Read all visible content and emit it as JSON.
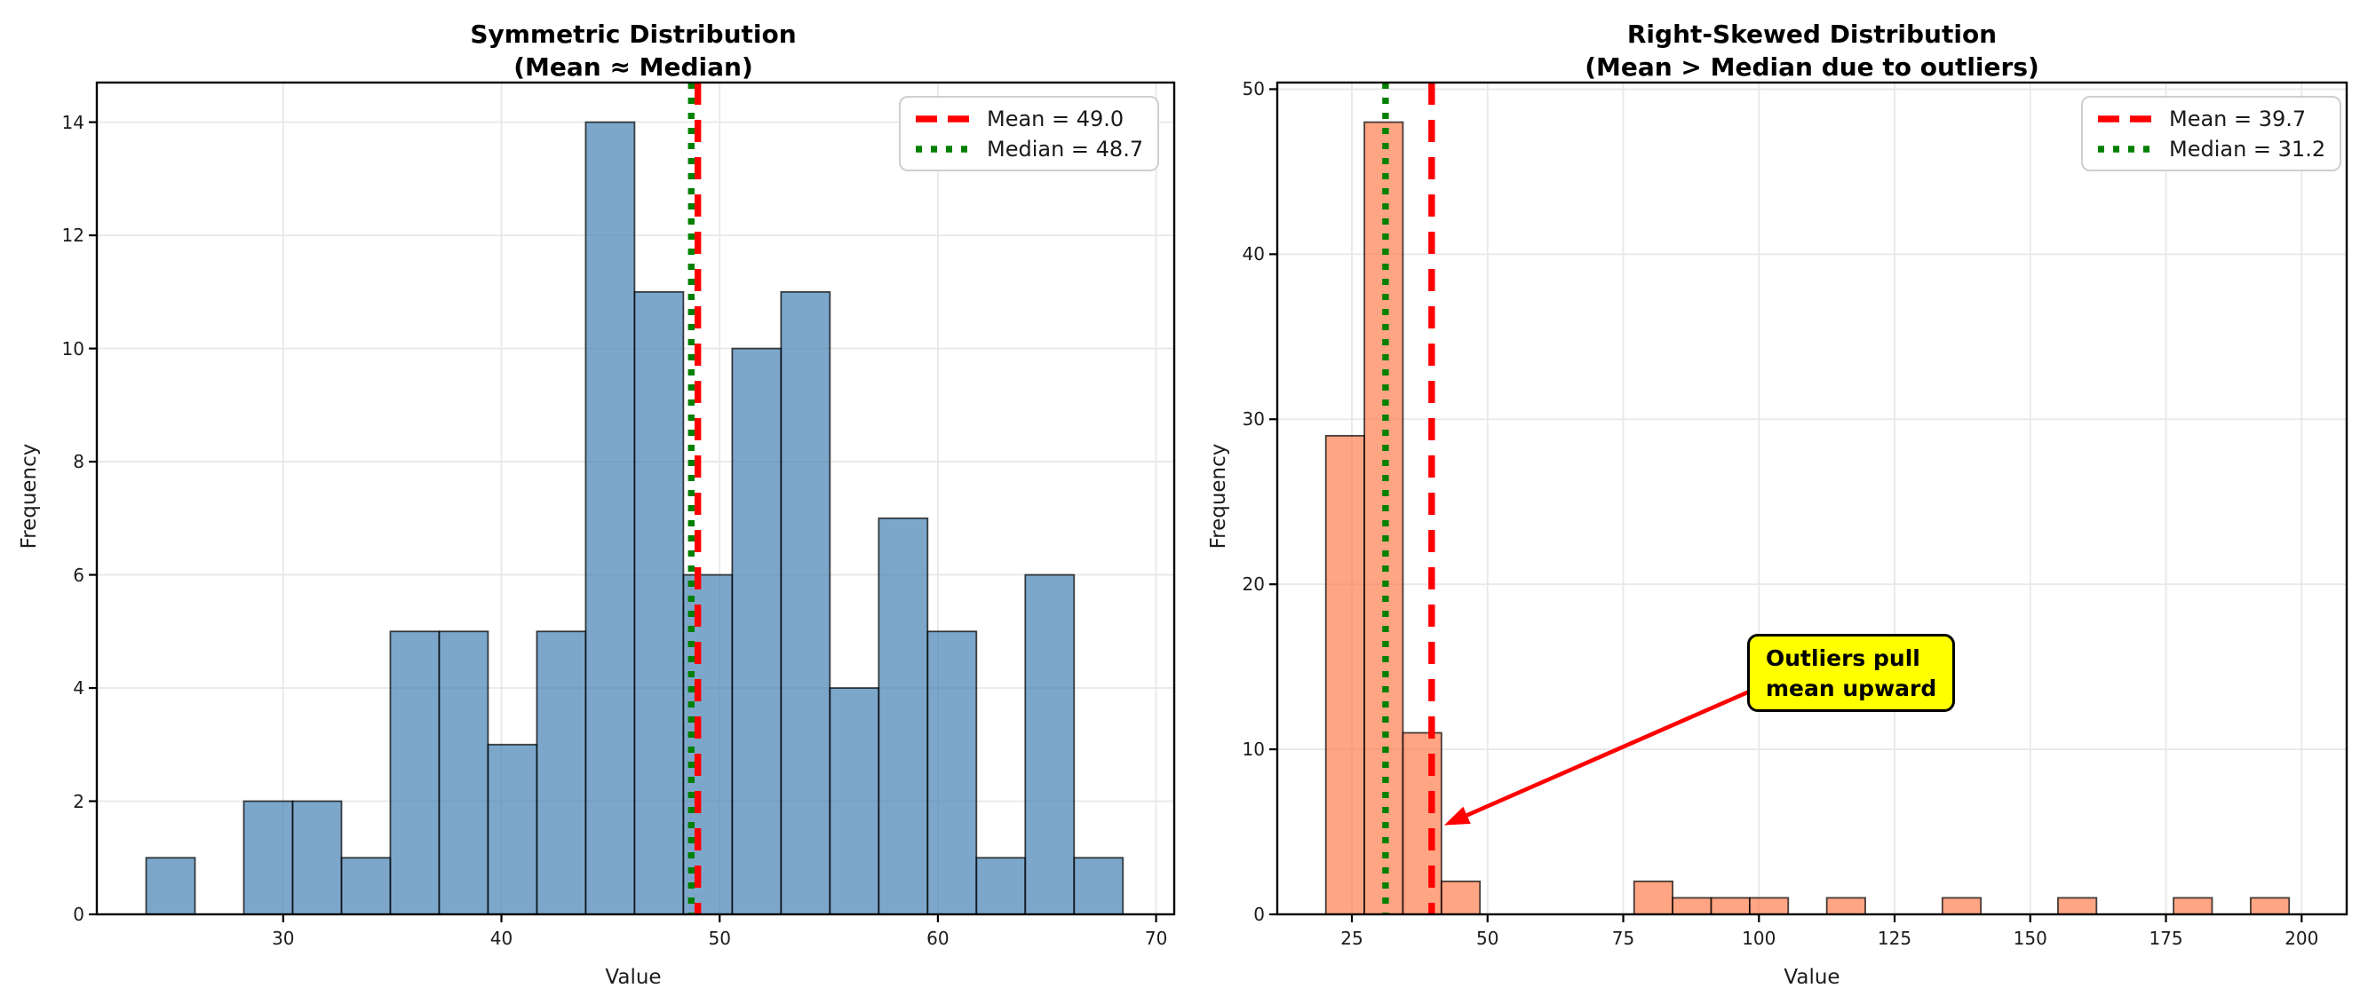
{
  "figure": {
    "background": "#ffffff",
    "spine_color": "#000000",
    "grid_color": "#e8e8e8",
    "text_color": "#1c1c1c"
  },
  "chart_data": [
    {
      "type": "bar",
      "subtype": "histogram",
      "title_line1": "Symmetric Distribution",
      "title_line2": "(Mean ≈ Median)",
      "xlabel": "Value",
      "ylabel": "Frequency",
      "xlim": [
        21.46,
        70.83
      ],
      "ylim": [
        0,
        14.7
      ],
      "xticks": [
        30,
        40,
        50,
        60,
        70
      ],
      "yticks": [
        0,
        2,
        4,
        6,
        8,
        10,
        12,
        14
      ],
      "grid": true,
      "n_samples": 100,
      "bin_start": 23.72,
      "bin_width": 2.238,
      "counts": [
        1,
        0,
        2,
        2,
        1,
        5,
        5,
        3,
        5,
        14,
        11,
        6,
        10,
        11,
        4,
        7,
        5,
        1,
        6,
        1
      ],
      "bar_fill": "rgba(70,130,180,0.7)",
      "bar_edge": "rgba(0,0,0,0.72)",
      "mean": {
        "value": 49.0,
        "label": "Mean = 49.0",
        "color": "#ff0000",
        "style": "dashed"
      },
      "median": {
        "value": 48.7,
        "label": "Median = 48.7",
        "color": "#008000",
        "style": "dotted"
      },
      "legend_position": "upper right"
    },
    {
      "type": "bar",
      "subtype": "histogram",
      "title_line1": "Right-Skewed Distribution",
      "title_line2": "(Mean > Median due to outliers)",
      "xlabel": "Value",
      "ylabel": "Frequency",
      "xlim": [
        11.25,
        208.3
      ],
      "ylim": [
        0,
        50.4
      ],
      "xticks": [
        25,
        50,
        75,
        100,
        125,
        150,
        175,
        200
      ],
      "yticks": [
        0,
        10,
        20,
        30,
        40,
        50
      ],
      "grid": true,
      "n_samples": 100,
      "bin_start": 20.2,
      "bin_width": 7.1,
      "counts": [
        29,
        48,
        11,
        2,
        0,
        0,
        0,
        0,
        2,
        1,
        1,
        1,
        0,
        1,
        0,
        0,
        1,
        0,
        0,
        1,
        0,
        0,
        1,
        0,
        1,
        0
      ],
      "bar_fill": "rgba(255,127,80,0.7)",
      "bar_edge": "rgba(0,0,0,0.72)",
      "mean": {
        "value": 39.7,
        "label": "Mean = 39.7",
        "color": "#ff0000",
        "style": "dashed"
      },
      "median": {
        "value": 31.2,
        "label": "Median = 31.2",
        "color": "#008000",
        "style": "dotted"
      },
      "legend_position": "upper right",
      "annotation": {
        "line1": "Outliers pull",
        "line2": "mean upward",
        "facecolor": "#ffff00",
        "edgecolor": "#000000",
        "arrow_color": "#ff0000",
        "text_xy": [
          98.1,
          16.9
        ],
        "arrow_start_xy": [
          101.0,
          13.9
        ],
        "arrow_tip_xy": [
          42.0,
          5.4
        ]
      }
    }
  ]
}
